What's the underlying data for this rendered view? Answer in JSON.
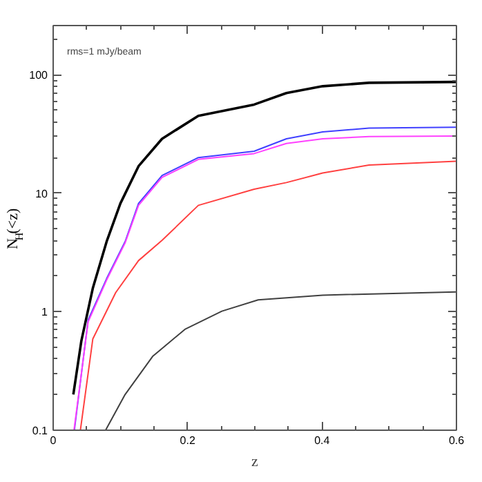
{
  "chart_data": {
    "type": "line",
    "xlabel": "z",
    "ylabel": "N$_{H}$(<z)",
    "annotations": [
      "rms=1 mJy/beam"
    ],
    "log": "y",
    "grid": false,
    "xlim": [
      0,
      0.6
    ],
    "ylim": [
      0.1,
      260
    ],
    "xticks": [
      0,
      0.2,
      0.4,
      0.6
    ],
    "yticks": [
      0.1,
      1,
      10,
      100
    ],
    "series": [
      {
        "color": "#000000",
        "x": [
          0.03,
          0.042,
          0.059,
          0.0795,
          0.1,
          0.127,
          0.162,
          0.216,
          0.299,
          0.347,
          0.401,
          0.47,
          0.6
        ],
        "values": [
          0.2,
          0.57,
          1.58,
          3.9,
          8.2,
          16.9,
          28.8,
          45,
          56,
          70,
          80,
          85.5,
          87
        ]
      },
      {
        "color": "#4040ff",
        "x": [
          0.0315,
          0.052,
          0.0795,
          0.107,
          0.127,
          0.162,
          0.216,
          0.299,
          0.347,
          0.401,
          0.47,
          0.6
        ],
        "values": [
          0.1,
          0.85,
          1.9,
          3.9,
          8.2,
          14.1,
          20,
          22.6,
          28.8,
          32.9,
          35.4,
          36
        ]
      },
      {
        "color": "#ff40ff",
        "x": [
          0.031,
          0.052,
          0.0795,
          0.107,
          0.127,
          0.162,
          0.216,
          0.299,
          0.347,
          0.401,
          0.47,
          0.6
        ],
        "values": [
          0.1,
          0.82,
          1.85,
          3.8,
          7.9,
          13.6,
          19.3,
          21.6,
          26.3,
          28.8,
          30.1,
          30.4
        ]
      },
      {
        "color": "#ff4040",
        "x": [
          0.0405,
          0.059,
          0.093,
          0.127,
          0.162,
          0.216,
          0.299,
          0.347,
          0.401,
          0.47,
          0.6
        ],
        "values": [
          0.1,
          0.59,
          1.45,
          2.7,
          4.0,
          7.9,
          10.8,
          12.3,
          14.8,
          17.3,
          18.6
        ]
      },
      {
        "color": "#404040",
        "x": [
          0.078,
          0.107,
          0.148,
          0.196,
          0.251,
          0.305,
          0.401,
          0.6
        ],
        "values": [
          0.1,
          0.2,
          0.42,
          0.71,
          1.01,
          1.26,
          1.38,
          1.47
        ]
      }
    ]
  }
}
